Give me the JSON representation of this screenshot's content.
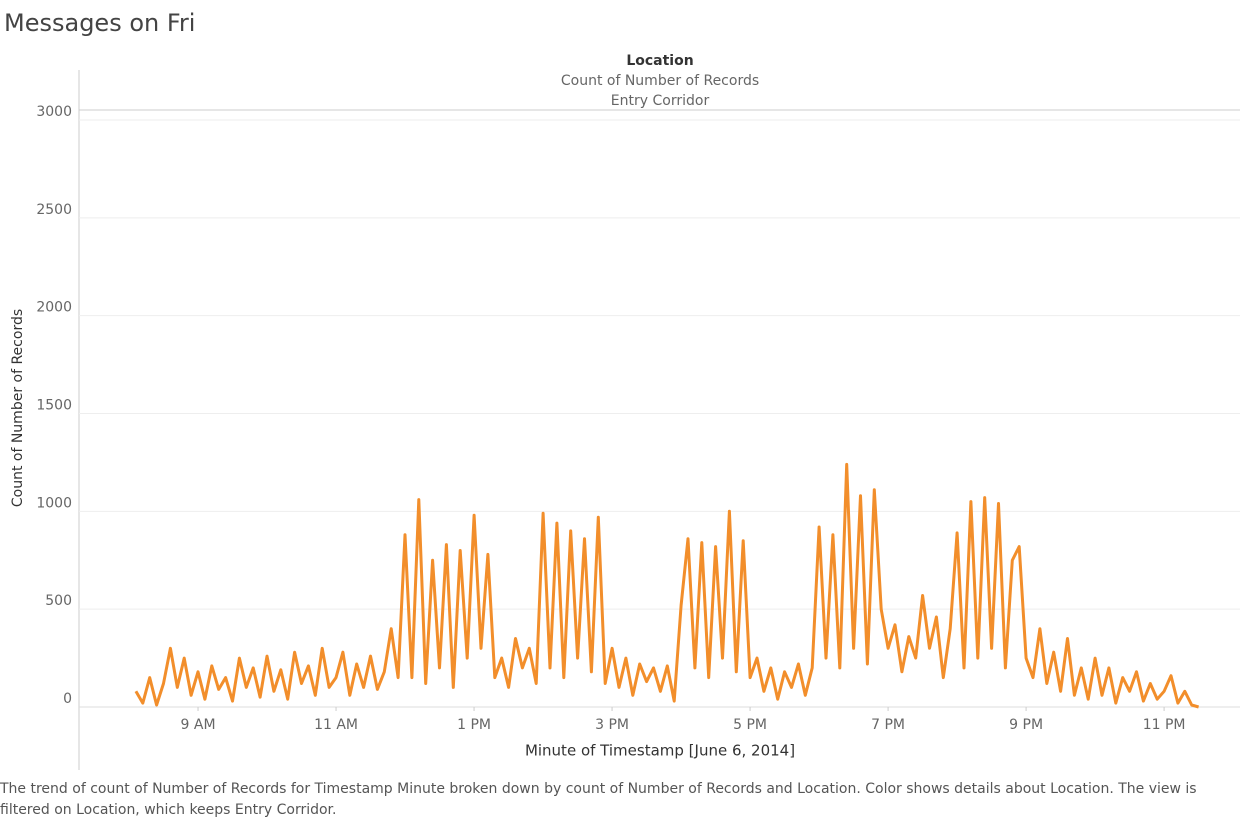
{
  "chart_data": {
    "type": "line",
    "title": "Messages on Fri",
    "header_title": "Location",
    "header_measure": "Count of Number of Records",
    "header_value": "Entry Corridor",
    "x_label": "Minute of Timestamp [June 6, 2014]",
    "y_label": "Count of Number of Records",
    "caption": "The trend of count of Number of Records for Timestamp Minute broken down by count of Number of Records and Location.  Color shows details about Location. The view is filtered on Location, which keeps Entry Corridor.",
    "xlim": [
      7.275,
      24.1
    ],
    "xticks": [
      {
        "value": 9,
        "label": "9 AM"
      },
      {
        "value": 11,
        "label": "11 AM"
      },
      {
        "value": 13,
        "label": "1 PM"
      },
      {
        "value": 15,
        "label": "3 PM"
      },
      {
        "value": 17,
        "label": "5 PM"
      },
      {
        "value": 19,
        "label": "7 PM"
      },
      {
        "value": 21,
        "label": "9 PM"
      },
      {
        "value": 23,
        "label": "11 PM"
      }
    ],
    "ylim": [
      0,
      3000
    ],
    "yticks": [
      0,
      500,
      1000,
      1500,
      2000,
      2500,
      3000
    ],
    "grid": true,
    "x": [
      8.1,
      8.2,
      8.3,
      8.4,
      8.5,
      8.6,
      8.7,
      8.8,
      8.9,
      9.0,
      9.1,
      9.2,
      9.3,
      9.4,
      9.5,
      9.6,
      9.7,
      9.8,
      9.9,
      10.0,
      10.1,
      10.2,
      10.3,
      10.4,
      10.5,
      10.6,
      10.7,
      10.8,
      10.9,
      11.0,
      11.1,
      11.2,
      11.3,
      11.4,
      11.5,
      11.6,
      11.7,
      11.8,
      11.9,
      12.0,
      12.1,
      12.2,
      12.3,
      12.4,
      12.5,
      12.6,
      12.7,
      12.8,
      12.9,
      13.0,
      13.1,
      13.2,
      13.3,
      13.4,
      13.5,
      13.6,
      13.7,
      13.8,
      13.9,
      14.0,
      14.1,
      14.2,
      14.3,
      14.4,
      14.5,
      14.6,
      14.7,
      14.8,
      14.9,
      15.0,
      15.1,
      15.2,
      15.3,
      15.4,
      15.5,
      15.6,
      15.7,
      15.8,
      15.9,
      16.0,
      16.1,
      16.2,
      16.3,
      16.4,
      16.5,
      16.6,
      16.7,
      16.8,
      16.9,
      17.0,
      17.1,
      17.2,
      17.3,
      17.4,
      17.5,
      17.6,
      17.7,
      17.8,
      17.9,
      18.0,
      18.1,
      18.2,
      18.3,
      18.4,
      18.5,
      18.6,
      18.7,
      18.8,
      18.9,
      19.0,
      19.1,
      19.2,
      19.3,
      19.4,
      19.5,
      19.6,
      19.7,
      19.8,
      19.9,
      20.0,
      20.1,
      20.2,
      20.3,
      20.4,
      20.5,
      20.6,
      20.7,
      20.8,
      20.9,
      21.0,
      21.1,
      21.2,
      21.3,
      21.4,
      21.5,
      21.6,
      21.7,
      21.8,
      21.9,
      22.0,
      22.1,
      22.2,
      22.3,
      22.4,
      22.5,
      22.6,
      22.7,
      22.8,
      22.9,
      23.0,
      23.1,
      23.2,
      23.3,
      23.4,
      23.5
    ],
    "series": [
      {
        "name": "Entry Corridor",
        "color": "#f28e2b",
        "values": [
          80,
          20,
          150,
          10,
          120,
          300,
          100,
          250,
          60,
          180,
          40,
          210,
          90,
          150,
          30,
          250,
          100,
          200,
          50,
          260,
          80,
          190,
          40,
          280,
          120,
          210,
          60,
          300,
          100,
          150,
          280,
          60,
          220,
          100,
          260,
          90,
          180,
          400,
          150,
          880,
          150,
          1060,
          120,
          750,
          200,
          830,
          100,
          800,
          250,
          980,
          300,
          780,
          150,
          250,
          100,
          350,
          200,
          300,
          120,
          990,
          200,
          940,
          150,
          900,
          250,
          860,
          180,
          970,
          120,
          300,
          100,
          250,
          60,
          220,
          130,
          200,
          80,
          210,
          30,
          520,
          860,
          200,
          840,
          150,
          820,
          250,
          1000,
          180,
          850,
          150,
          250,
          80,
          200,
          40,
          180,
          100,
          220,
          60,
          200,
          920,
          250,
          880,
          200,
          1240,
          300,
          1080,
          220,
          1110,
          500,
          300,
          420,
          180,
          360,
          250,
          570,
          300,
          460,
          150,
          400,
          890,
          200,
          1050,
          250,
          1070,
          300,
          1040,
          200,
          750,
          820,
          250,
          150,
          400,
          120,
          280,
          80,
          350,
          60,
          200,
          40,
          250,
          60,
          200,
          20,
          150,
          80,
          180,
          30,
          120,
          40,
          80,
          160,
          20,
          80,
          10,
          0
        ]
      }
    ]
  }
}
